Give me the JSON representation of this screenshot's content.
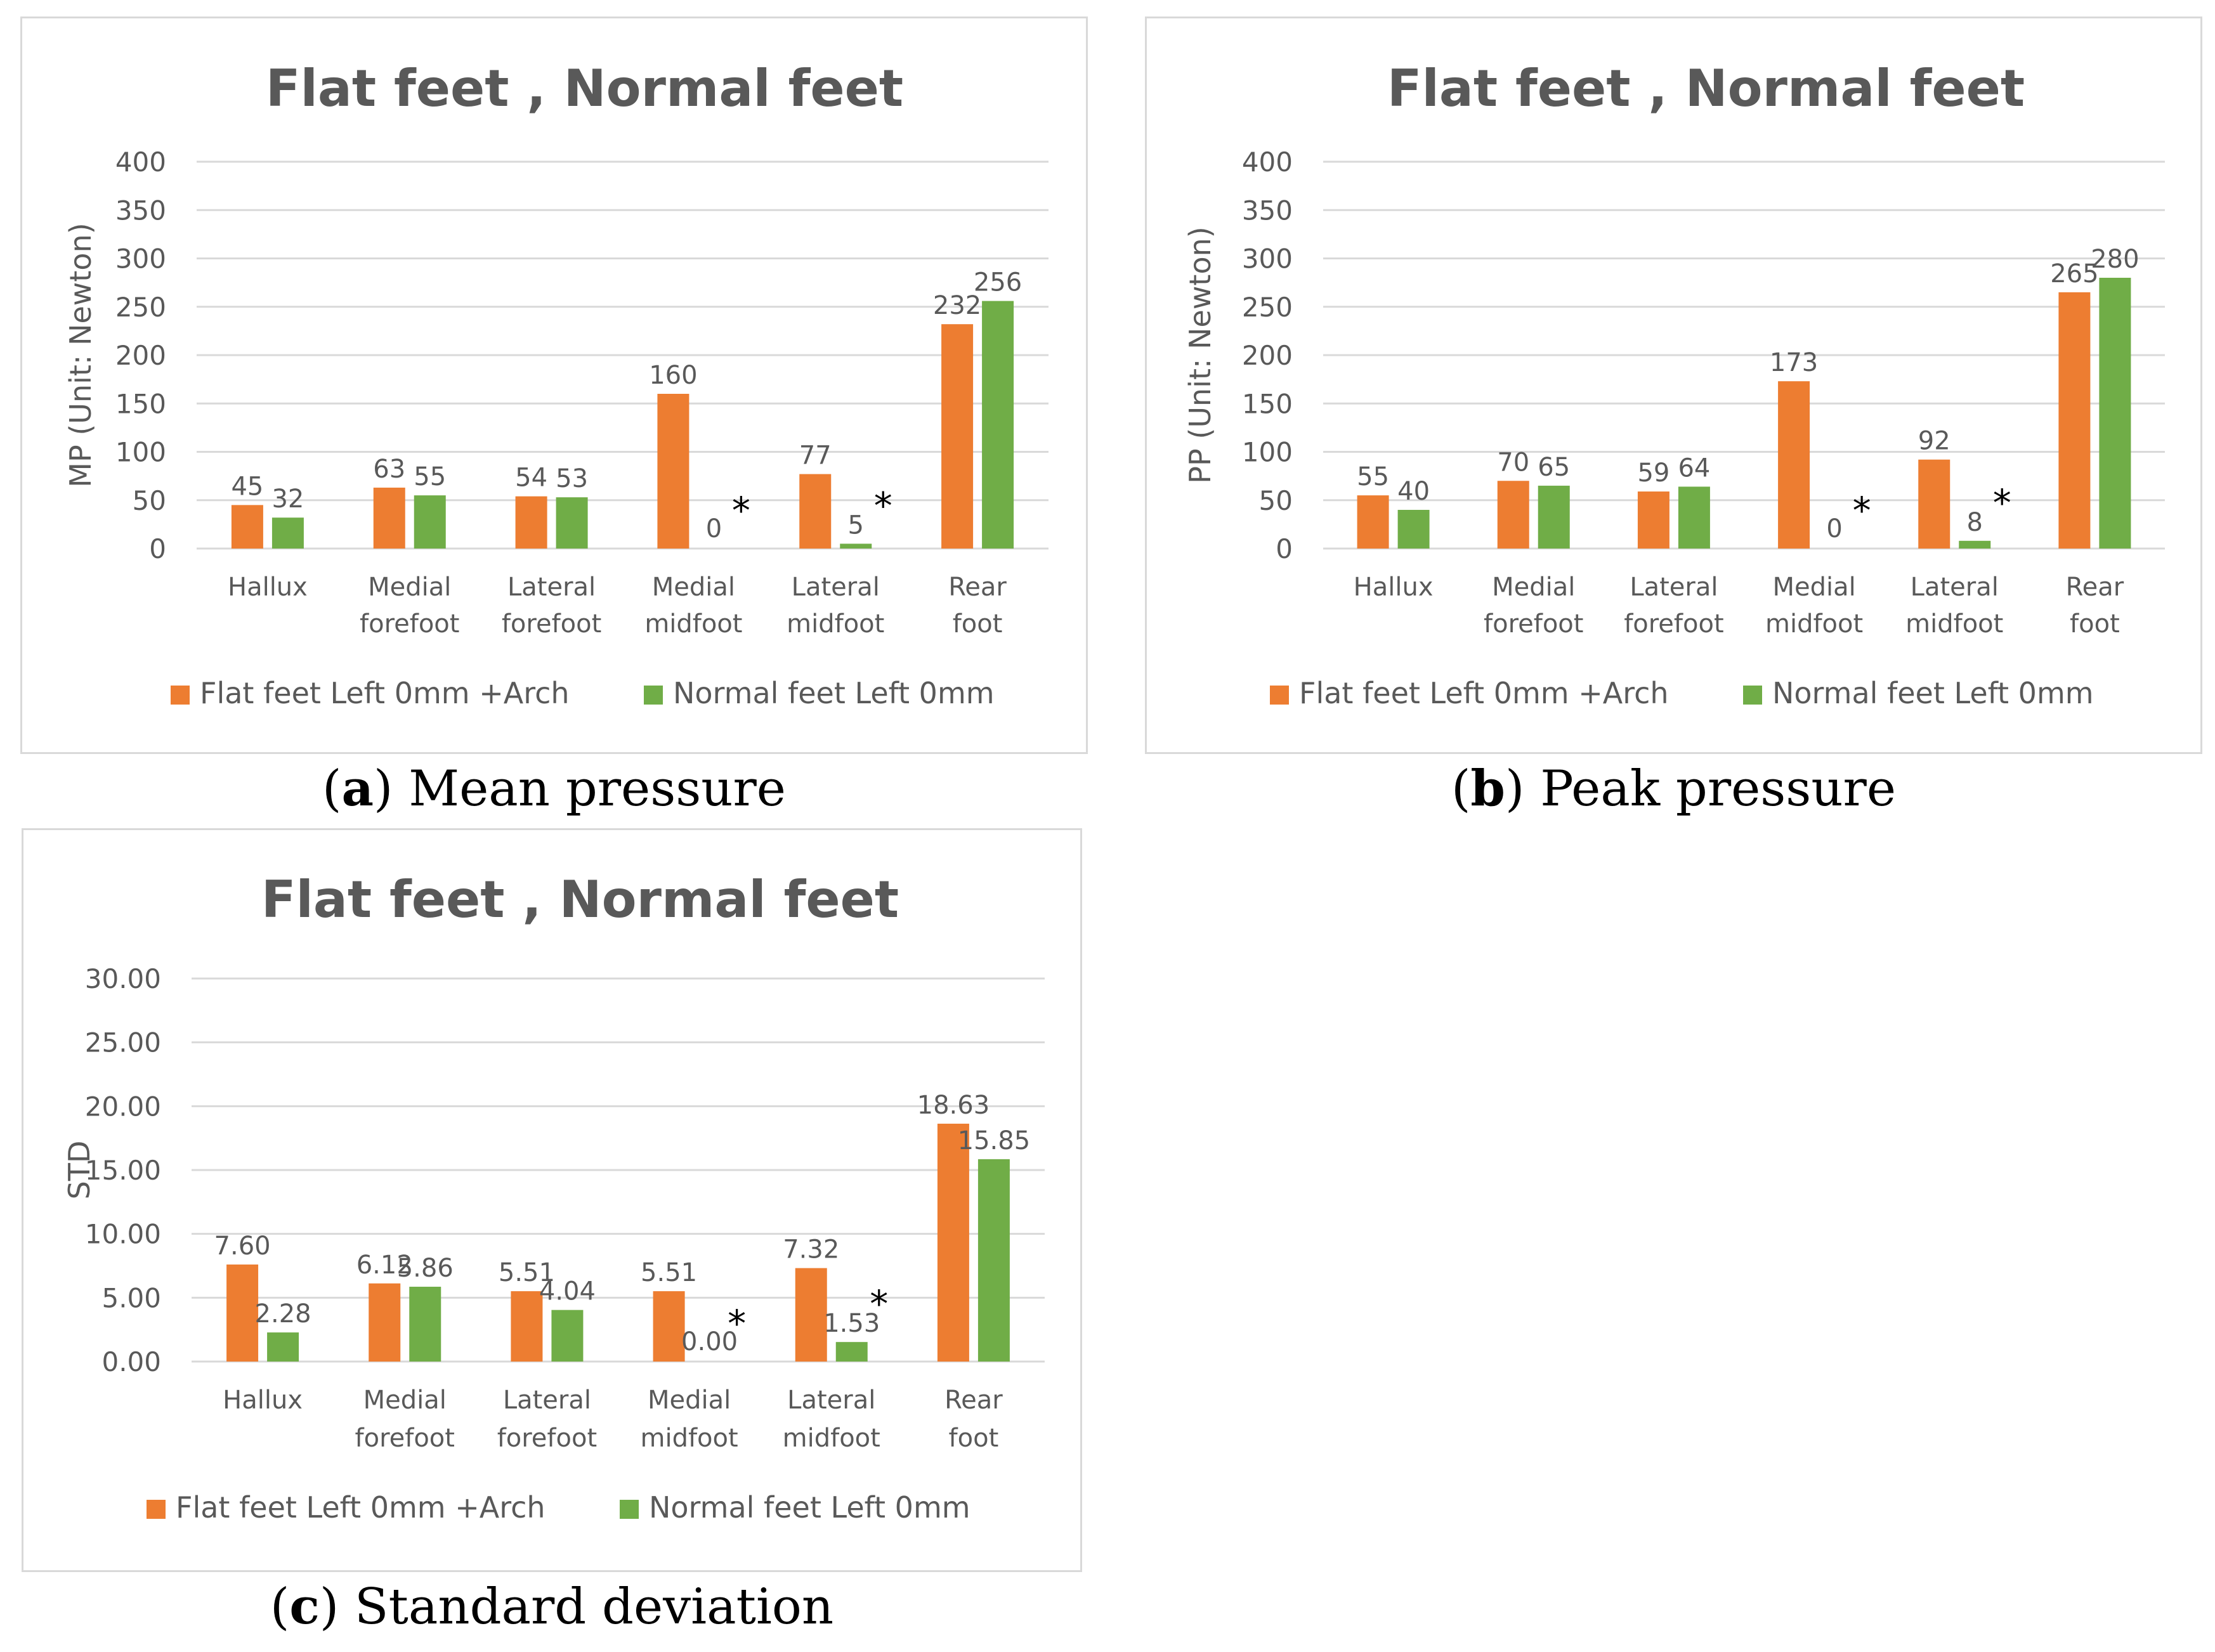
{
  "colors": {
    "flat": "#ED7D31",
    "normal": "#70AD47",
    "grid": "#d9d9d9",
    "text": "#595959",
    "title": "#595959"
  },
  "panels": [
    {
      "letter": "a",
      "caption": "Mean pressure",
      "chart_data": {
        "type": "bar",
        "title": "Flat feet , Normal feet",
        "ylabel": "MP (Unit: Newton)",
        "xlabel": "",
        "ylim": [
          0,
          400
        ],
        "yticks": [
          "0",
          "50",
          "100",
          "150",
          "200",
          "250",
          "300",
          "350",
          "400"
        ],
        "categories": [
          [
            "Hallux"
          ],
          [
            "Medial",
            "forefoot"
          ],
          [
            "Lateral",
            "forefoot"
          ],
          [
            "Medial",
            "midfoot"
          ],
          [
            "Lateral",
            "midfoot"
          ],
          [
            "Rear",
            "foot"
          ]
        ],
        "series": [
          {
            "name": "Flat feet Left 0mm +Arch",
            "values": [
              45,
              63,
              54,
              160,
              77,
              232
            ],
            "labels": [
              "45",
              "63",
              "54",
              "160",
              "77",
              "232"
            ]
          },
          {
            "name": "Normal feet Left 0mm",
            "values": [
              32,
              55,
              53,
              0,
              5,
              256
            ],
            "labels": [
              "32",
              "55",
              "53",
              "0",
              "5",
              "256"
            ]
          }
        ],
        "significance": [
          3,
          4
        ],
        "significance_mark": "*",
        "legend": "bottom"
      }
    },
    {
      "letter": "b",
      "caption": "Peak pressure",
      "chart_data": {
        "type": "bar",
        "title": "Flat feet , Normal feet",
        "ylabel": "PP (Unit: Newton)",
        "xlabel": "",
        "ylim": [
          0,
          400
        ],
        "yticks": [
          "0",
          "50",
          "100",
          "150",
          "200",
          "250",
          "300",
          "350",
          "400"
        ],
        "categories": [
          [
            "Hallux"
          ],
          [
            "Medial",
            "forefoot"
          ],
          [
            "Lateral",
            "forefoot"
          ],
          [
            "Medial",
            "midfoot"
          ],
          [
            "Lateral",
            "midfoot"
          ],
          [
            "Rear",
            "foot"
          ]
        ],
        "series": [
          {
            "name": "Flat feet Left 0mm +Arch",
            "values": [
              55,
              70,
              59,
              173,
              92,
              265
            ],
            "labels": [
              "55",
              "70",
              "59",
              "173",
              "92",
              "265"
            ]
          },
          {
            "name": "Normal feet Left 0mm",
            "values": [
              40,
              65,
              64,
              0,
              8,
              280
            ],
            "labels": [
              "40",
              "65",
              "64",
              "0",
              "8",
              "280"
            ]
          }
        ],
        "significance": [
          3,
          4
        ],
        "significance_mark": "*",
        "legend": "bottom"
      }
    },
    {
      "letter": "c",
      "caption": "Standard deviation",
      "chart_data": {
        "type": "bar",
        "title": "Flat feet , Normal feet",
        "ylabel": "STD",
        "xlabel": "",
        "ylim": [
          0,
          30
        ],
        "yticks": [
          "0.00",
          "5.00",
          "10.00",
          "15.00",
          "20.00",
          "25.00",
          "30.00"
        ],
        "categories": [
          [
            "Hallux"
          ],
          [
            "Medial",
            "forefoot"
          ],
          [
            "Lateral",
            "forefoot"
          ],
          [
            "Medial",
            "midfoot"
          ],
          [
            "Lateral",
            "midfoot"
          ],
          [
            "Rear",
            "foot"
          ]
        ],
        "series": [
          {
            "name": "Flat feet Left 0mm +Arch",
            "values": [
              7.6,
              6.12,
              5.51,
              5.51,
              7.32,
              18.63
            ],
            "labels": [
              "7.60",
              "6.12",
              "5.51",
              "5.51",
              "7.32",
              "18.63"
            ]
          },
          {
            "name": "Normal feet Left 0mm",
            "values": [
              2.28,
              5.86,
              4.04,
              0.0,
              1.53,
              15.85
            ],
            "labels": [
              "2.28",
              "5.86",
              "4.04",
              "0.00",
              "1.53",
              "15.85"
            ]
          }
        ],
        "significance": [
          3,
          4
        ],
        "significance_mark": "*",
        "legend": "bottom"
      }
    }
  ]
}
